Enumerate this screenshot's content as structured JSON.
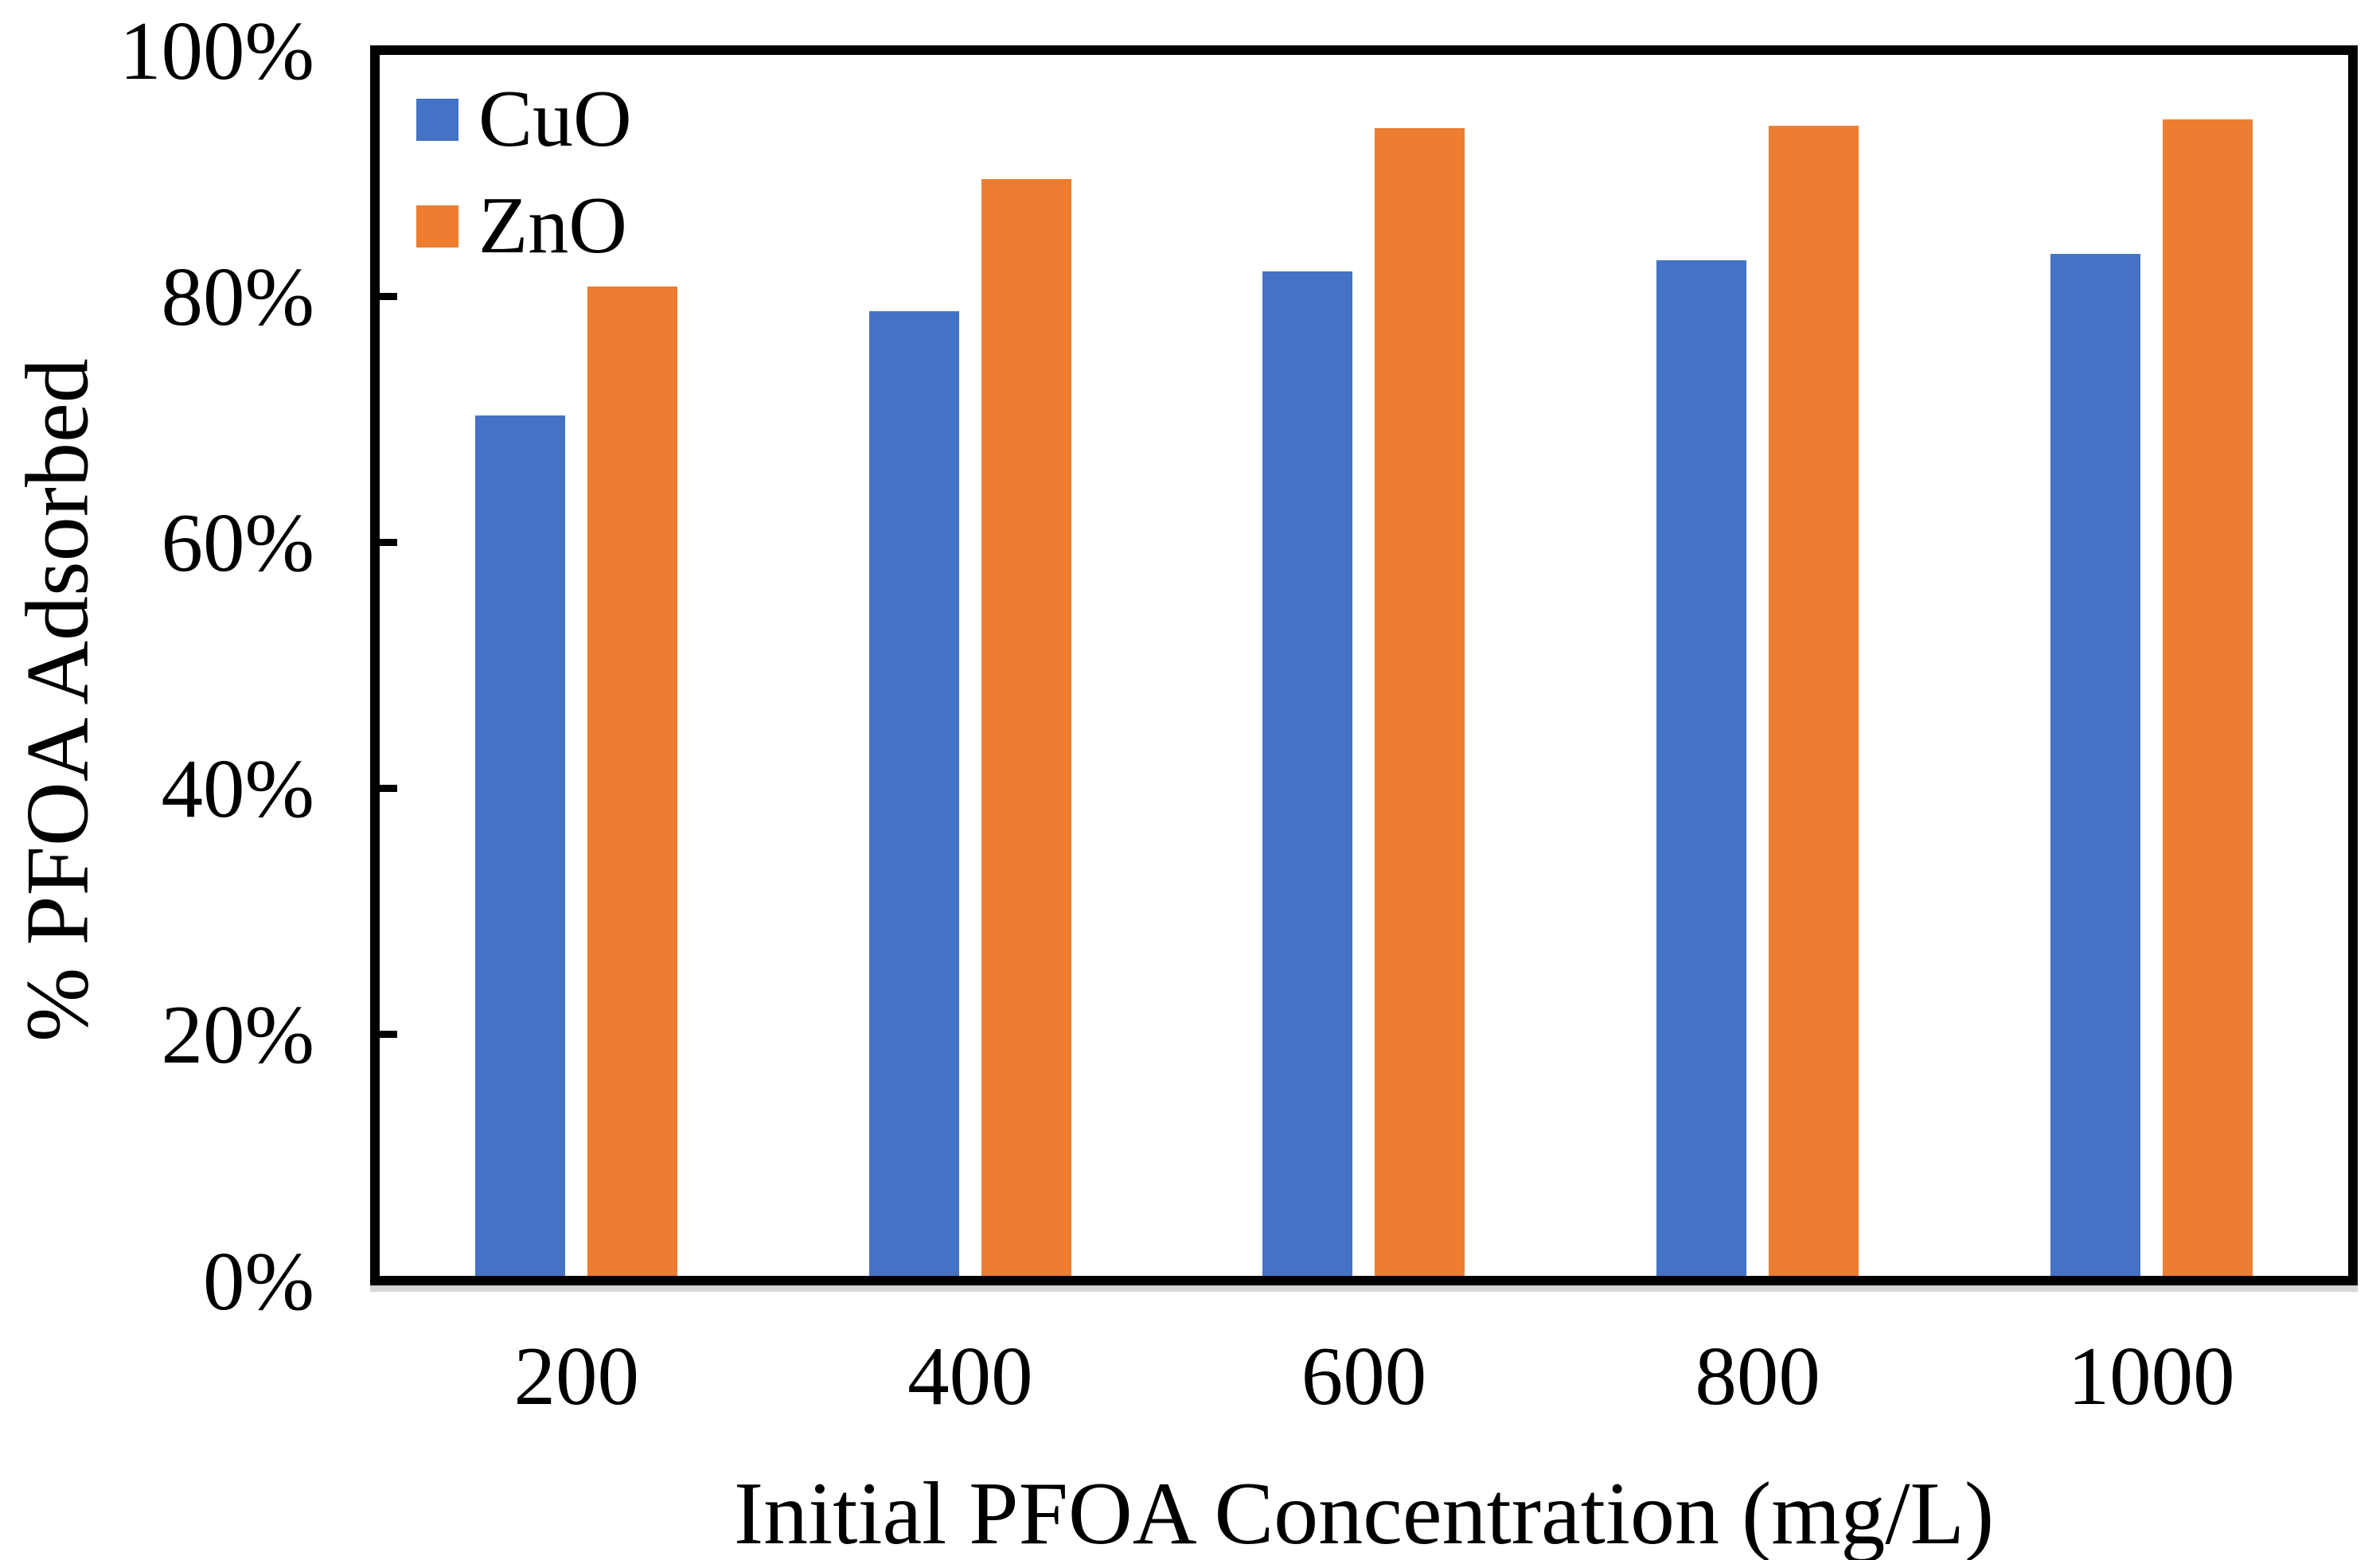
{
  "chart_data": {
    "type": "bar",
    "xlabel": "Initial PFOA Concentration (mg/L)",
    "ylabel": "% PFOA Adsorbed",
    "categories": [
      "200",
      "400",
      "600",
      "800",
      "1000"
    ],
    "series": [
      {
        "name": "CuO",
        "color": "#4472C4",
        "values": [
          70.5,
          79.0,
          82.3,
          83.2,
          83.7
        ]
      },
      {
        "name": "ZnO",
        "color": "#ED7D31",
        "values": [
          81.0,
          89.8,
          94.0,
          94.2,
          94.7
        ]
      }
    ],
    "ylim": [
      0,
      100
    ],
    "y_ticks": [
      {
        "value": 0,
        "label": "0%"
      },
      {
        "value": 20,
        "label": "20%"
      },
      {
        "value": 40,
        "label": "40%"
      },
      {
        "value": 60,
        "label": "60%"
      },
      {
        "value": 80,
        "label": "80%"
      },
      {
        "value": 100,
        "label": "100%"
      }
    ],
    "grid": false,
    "legend_position": "top-left-inside",
    "axis_color": "#000000",
    "axis_shadow_color": "#D6D6D6"
  }
}
